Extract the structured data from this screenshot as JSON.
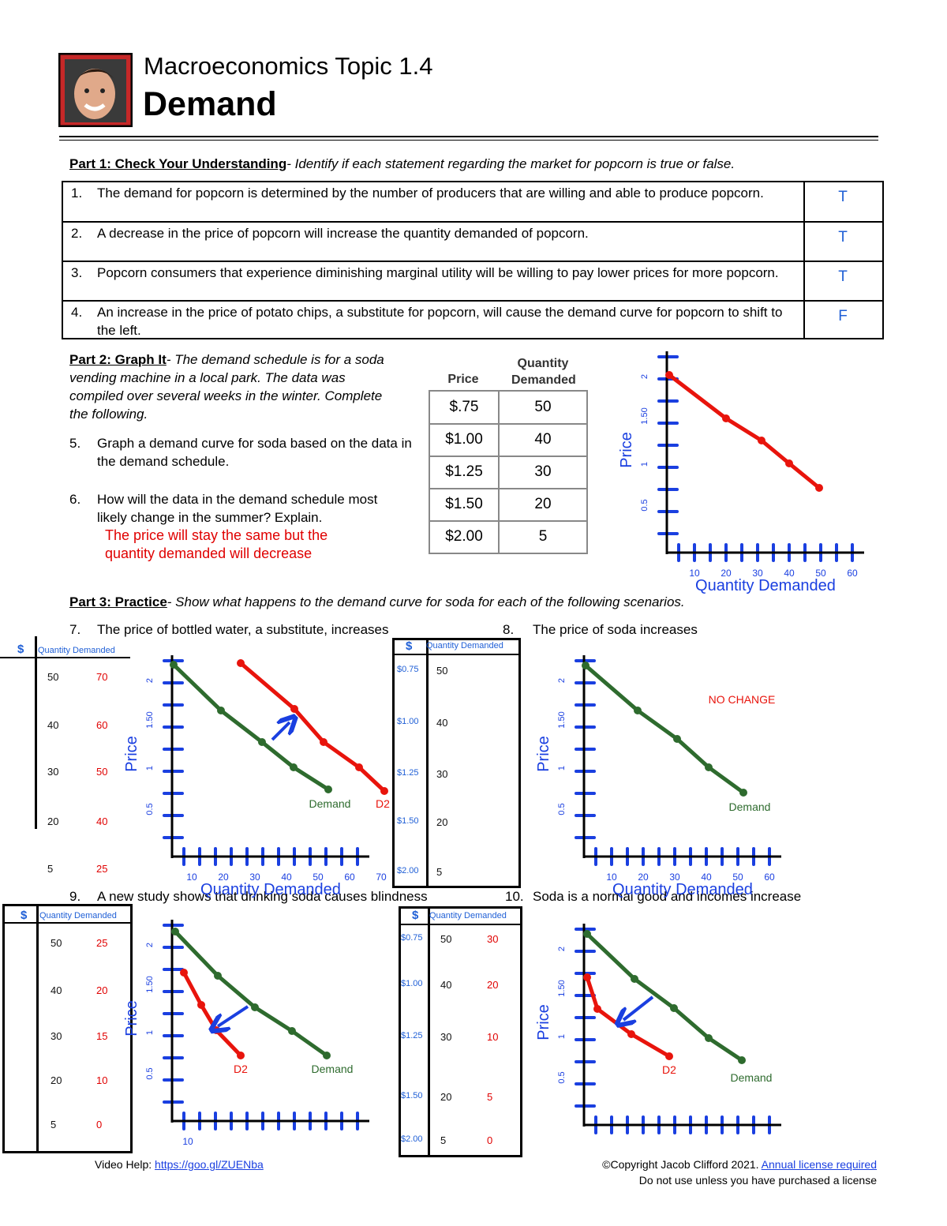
{
  "header": {
    "title": "Macroeconomics Topic 1.4",
    "subtitle": "Demand"
  },
  "part1": {
    "heading": "Part 1: Check Your Understanding",
    "instruction": "- Identify if each statement regarding the market for popcorn is true or false.",
    "rows": [
      {
        "number": "1.",
        "text": "The demand for popcorn is determined by the number of producers that are willing and able to produce popcorn.",
        "answer": "T"
      },
      {
        "number": "2.",
        "text": "A decrease in the price of popcorn will increase the quantity demanded of popcorn.",
        "answer": "T"
      },
      {
        "number": "3.",
        "text": "Popcorn consumers that experience diminishing marginal utility will be willing to pay lower prices for more popcorn.",
        "answer": "T"
      },
      {
        "number": "4.",
        "text": "An increase in the price of potato chips, a substitute for popcorn, will cause the demand curve for popcorn to shift to the left.",
        "answer": "F"
      }
    ]
  },
  "part2": {
    "heading": "Part 2: Graph It",
    "intro": "- The demand schedule is for a soda vending machine in a local park. The data was compiled over several weeks in the winter. Complete the following.",
    "questions": [
      {
        "number": "5.",
        "text": "Graph a demand curve for soda based on the data in the demand schedule."
      },
      {
        "number": "6.",
        "text": "How will the data in the demand schedule most likely change in the summer? Explain."
      }
    ],
    "answer": "The price will stay the same but the quantity demanded will decrease",
    "schedule": {
      "headers": [
        "Price",
        "Quantity Demanded"
      ],
      "rows": [
        [
          "$.75",
          "50"
        ],
        [
          "$1.00",
          "40"
        ],
        [
          "$1.25",
          "30"
        ],
        [
          "$1.50",
          "20"
        ],
        [
          "$2.00",
          "5"
        ]
      ]
    }
  },
  "part3": {
    "heading": "Part 3: Practice",
    "instruction": "- Show what happens to the demand curve for soda for each of the following scenarios.",
    "questions": [
      {
        "number": "7.",
        "text": "The price of bottled water, a substitute, increases"
      },
      {
        "number": "8.",
        "text": "The price of soda increases"
      },
      {
        "number": "9.",
        "text": "A new study shows that drinking soda causes blindness"
      },
      {
        "number": "10.",
        "text": "Soda is a normal good and incomes increase"
      }
    ],
    "tables": [
      {
        "headers": [
          "$",
          "Quantity Demanded"
        ],
        "rows": [
          [
            "50",
            "70"
          ],
          [
            "40",
            "60"
          ],
          [
            "30",
            "50"
          ],
          [
            "20",
            "40"
          ],
          [
            "5",
            "25"
          ]
        ]
      },
      {
        "headers": [
          "$",
          "Quantity Demanded"
        ],
        "rows": [
          [
            "$0.75",
            "50"
          ],
          [
            "$1.00",
            "40"
          ],
          [
            "$1.25",
            "30"
          ],
          [
            "$1.50",
            "20"
          ],
          [
            "$2.00",
            "5"
          ]
        ]
      },
      {
        "headers": [
          "$",
          "Quantity Demanded"
        ],
        "rows": [
          [
            "50",
            "25"
          ],
          [
            "40",
            "20"
          ],
          [
            "30",
            "15"
          ],
          [
            "20",
            "10"
          ],
          [
            "5",
            "0"
          ]
        ]
      },
      {
        "headers": [
          "$",
          "Quantity Demanded"
        ],
        "rows": [
          [
            "$0.75",
            "50",
            "30"
          ],
          [
            "$1.00",
            "40",
            "20"
          ],
          [
            "$1.25",
            "30",
            "10"
          ],
          [
            "$1.50",
            "20",
            "5"
          ],
          [
            "$2.00",
            "5",
            "0"
          ]
        ]
      }
    ]
  },
  "graphs": [
    {
      "y_label": "Price",
      "x_label": "Quantity Demanded",
      "yticks": [
        "2",
        "1.50",
        "1",
        "0.5"
      ],
      "xticks": [
        "10",
        "20",
        "30",
        "40",
        "50",
        "60"
      ],
      "labels": []
    },
    {
      "y_label": "Price",
      "x_label": "Quantity Demanded",
      "yticks": [
        "2",
        "1.50",
        "1",
        "0.5"
      ],
      "xticks": [
        "10",
        "20",
        "30",
        "40",
        "50",
        "60",
        "70"
      ],
      "labels": [
        "Demand",
        "D2"
      ]
    },
    {
      "y_label": "Price",
      "x_label": "Quantity Demanded",
      "yticks": [
        "2",
        "1.50",
        "1",
        "0.5"
      ],
      "xticks": [
        "10",
        "20",
        "30",
        "40",
        "50",
        "60"
      ],
      "labels": [
        "NO CHANGE",
        "Demand"
      ]
    },
    {
      "y_label": "Price",
      "yticks": [
        "2",
        "1.50",
        "1",
        "0.5"
      ],
      "xticks": [
        "10"
      ],
      "labels": [
        "D2",
        "Demand"
      ]
    },
    {
      "y_label": "Price",
      "yticks": [
        "2",
        "1.50",
        "1",
        "0.5"
      ],
      "xticks": [],
      "labels": [
        "D2",
        "Demand"
      ]
    }
  ],
  "footer": {
    "video_label": "Video Help:",
    "video_link": "https://goo.gl/ZUENba",
    "copyright": "©Copyright Jacob Clifford 2021.",
    "license_link": "Annual license required",
    "notice": "Do not use unless you have purchased a license"
  }
}
